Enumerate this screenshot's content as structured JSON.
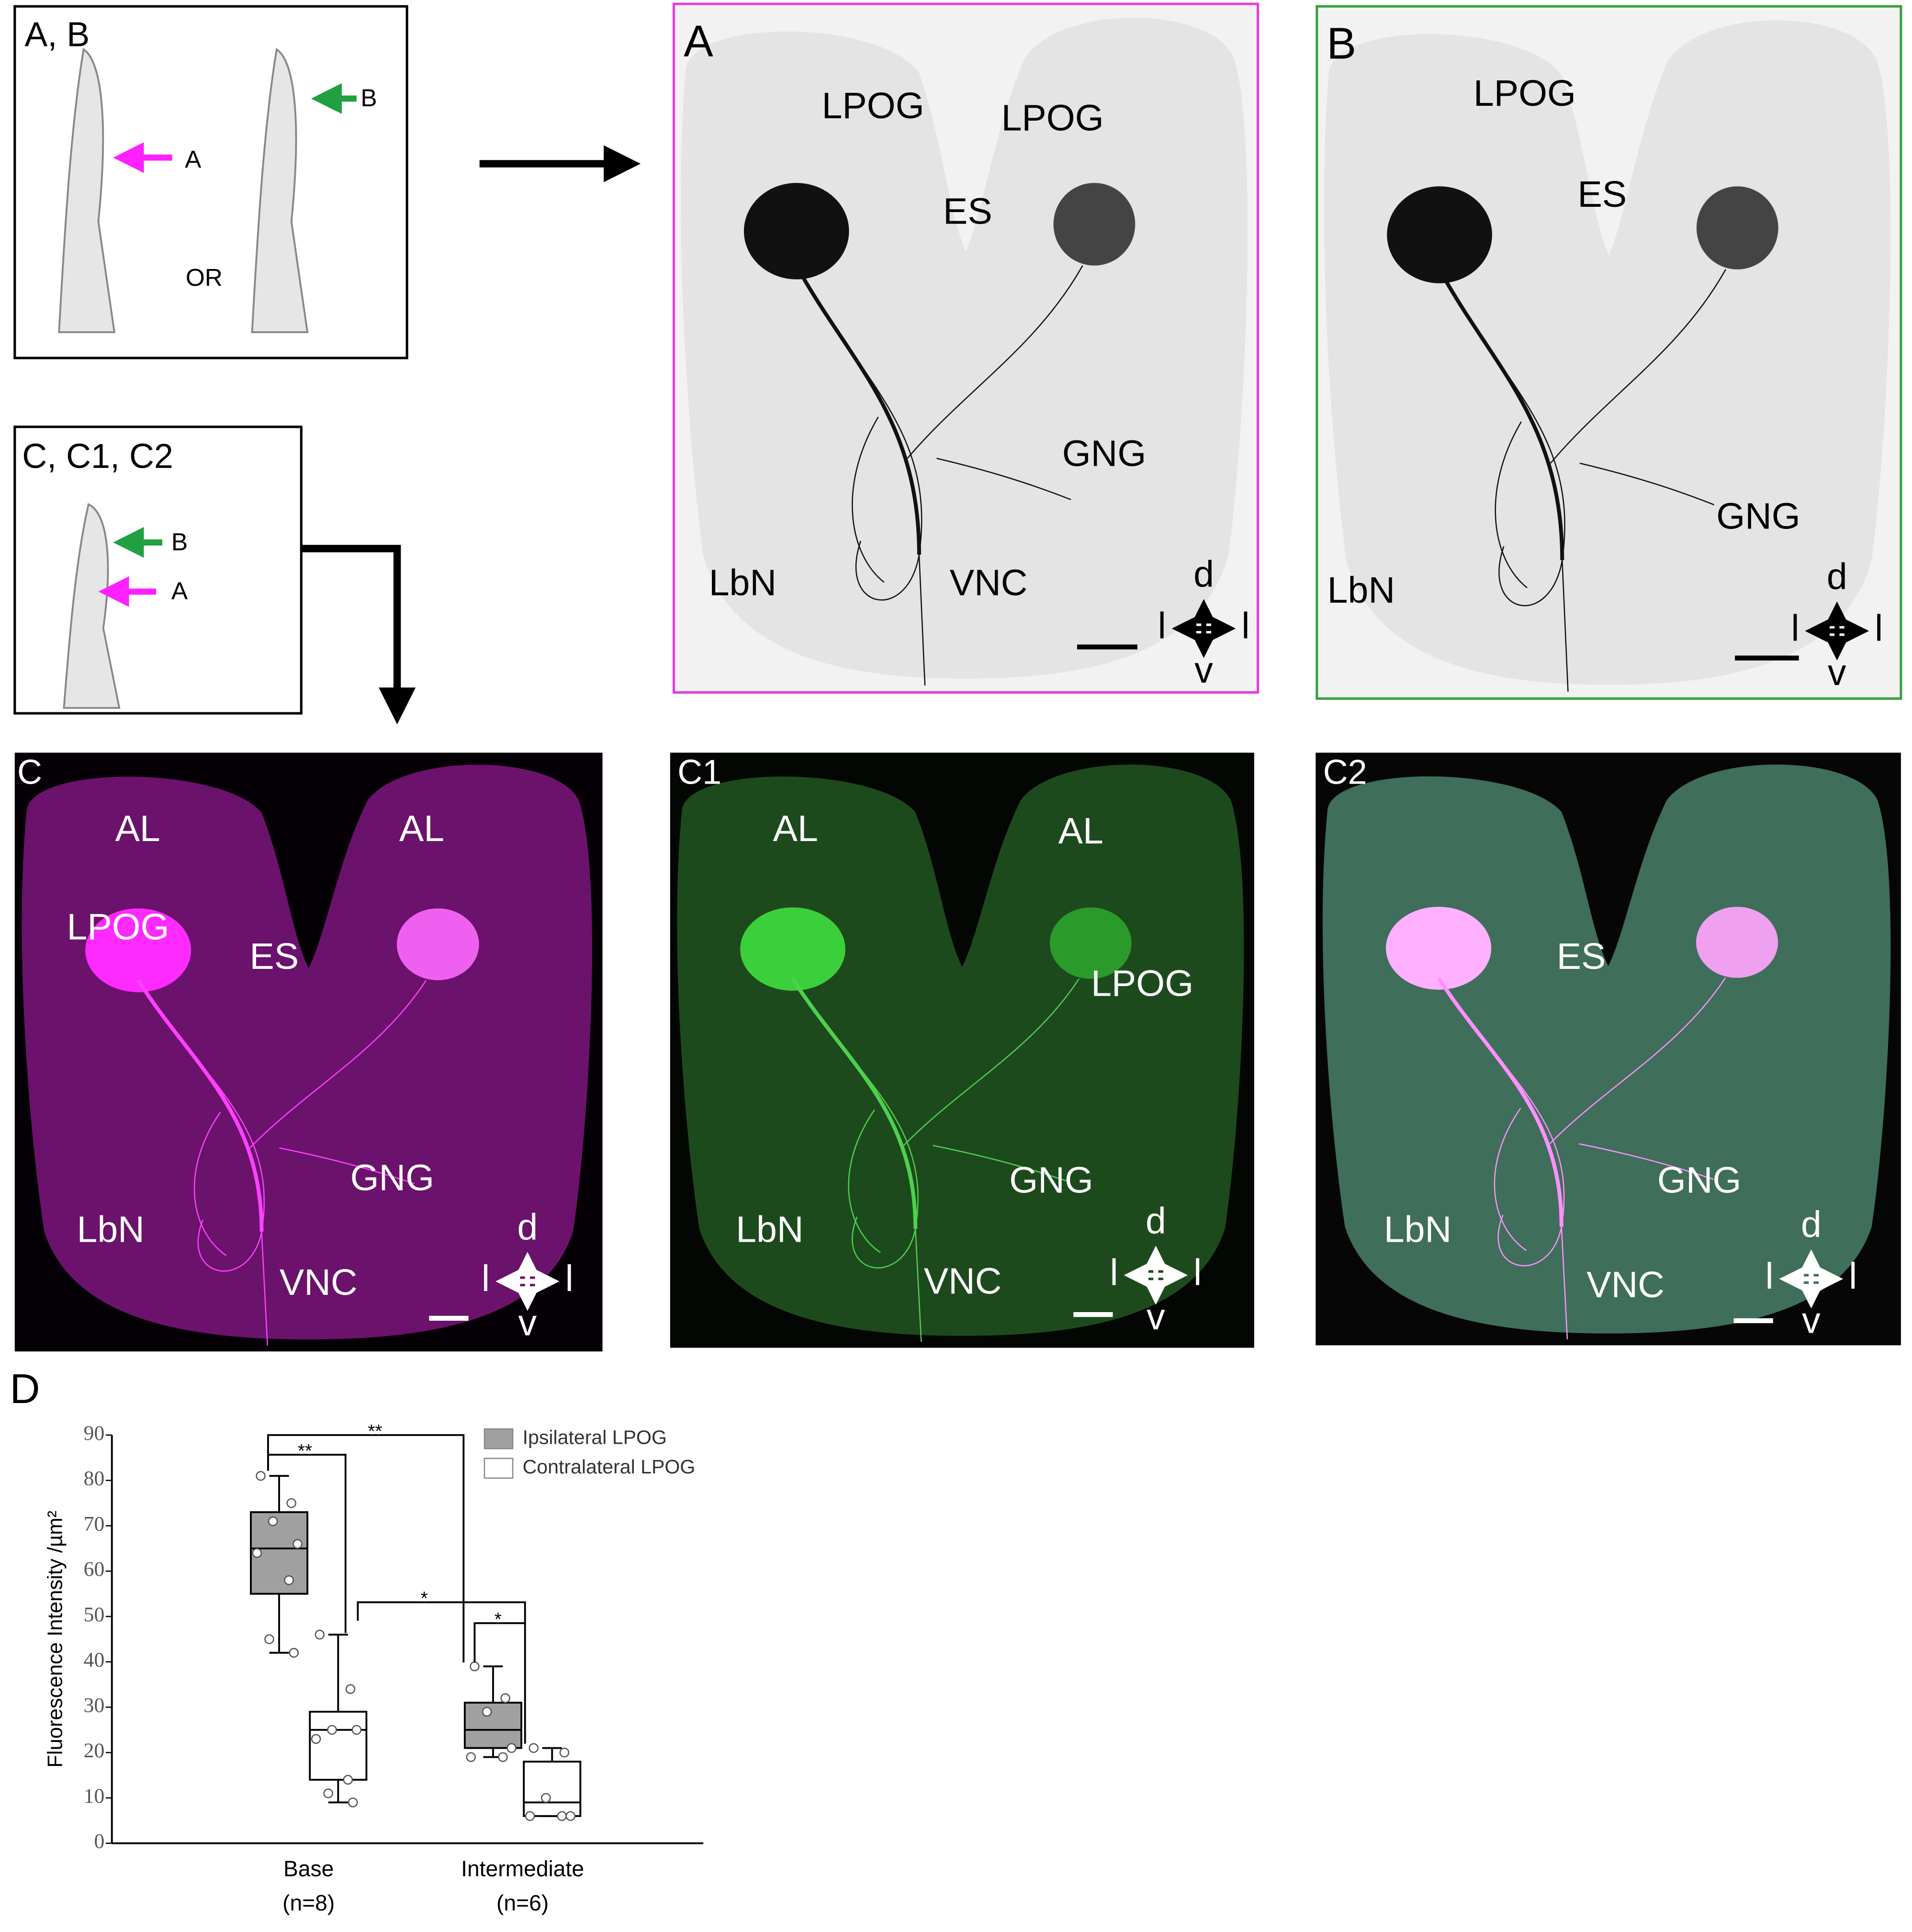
{
  "panels": [
    {
      "label": "A, B",
      "annotations": [
        "A",
        "B",
        "OR"
      ]
    },
    {
      "label": "C, C1, C2",
      "annotations": [
        "B",
        "A"
      ]
    },
    {
      "label": "A",
      "annotations": [
        "LPOG",
        "LPOG",
        "ES",
        "GNG",
        "LbN",
        "VNC",
        "d",
        "l",
        "l",
        "v"
      ]
    },
    {
      "label": "B",
      "annotations": [
        "LPOG",
        "ES",
        "GNG",
        "LbN",
        "d",
        "l",
        "l",
        "v"
      ]
    },
    {
      "label": "C",
      "annotations": [
        "AL",
        "AL",
        "LPOG",
        "ES",
        "GNG",
        "LbN",
        "VNC",
        "d",
        "l",
        "l",
        "v"
      ]
    },
    {
      "label": "C1",
      "annotations": [
        "AL",
        "AL",
        "LPOG",
        "GNG",
        "LbN",
        "VNC",
        "d",
        "l",
        "l",
        "v"
      ]
    },
    {
      "label": "C2",
      "annotations": [
        "ES",
        "GNG",
        "LbN",
        "VNC",
        "d",
        "l",
        "l",
        "v"
      ]
    }
  ],
  "chart_data": {
    "type": "box",
    "panel_label": "D",
    "y_label": "Fluorescence Intensity /µm²",
    "categories": [
      "Base",
      "Intermediate"
    ],
    "n_labels": [
      "(n=8)",
      "(n=6)"
    ],
    "ylim": [
      0,
      90
    ],
    "yticks": [
      0,
      10,
      20,
      30,
      40,
      50,
      60,
      70,
      80,
      90
    ],
    "series": [
      {
        "name": "Ipsilateral LPOG",
        "color": "#a0a0a0",
        "min": [
          42,
          19
        ],
        "q1": [
          55,
          21
        ],
        "median": [
          65,
          25
        ],
        "q3": [
          73,
          31
        ],
        "max": [
          81,
          39
        ],
        "points": [
          [
            81,
            75,
            71,
            66,
            64,
            58,
            45,
            42
          ],
          [
            39,
            32,
            29,
            21,
            19,
            19
          ]
        ]
      },
      {
        "name": "Contralateral LPOG",
        "color": "#ffffff",
        "min": [
          9,
          6
        ],
        "q1": [
          14,
          6
        ],
        "median": [
          25,
          9
        ],
        "q3": [
          29,
          18
        ],
        "max": [
          46,
          21
        ],
        "points": [
          [
            46,
            34,
            25,
            25,
            23,
            14,
            11,
            9
          ],
          [
            21,
            20,
            10,
            6,
            6,
            6
          ]
        ]
      }
    ],
    "significance": [
      "**",
      "**",
      "*",
      "*"
    ]
  }
}
